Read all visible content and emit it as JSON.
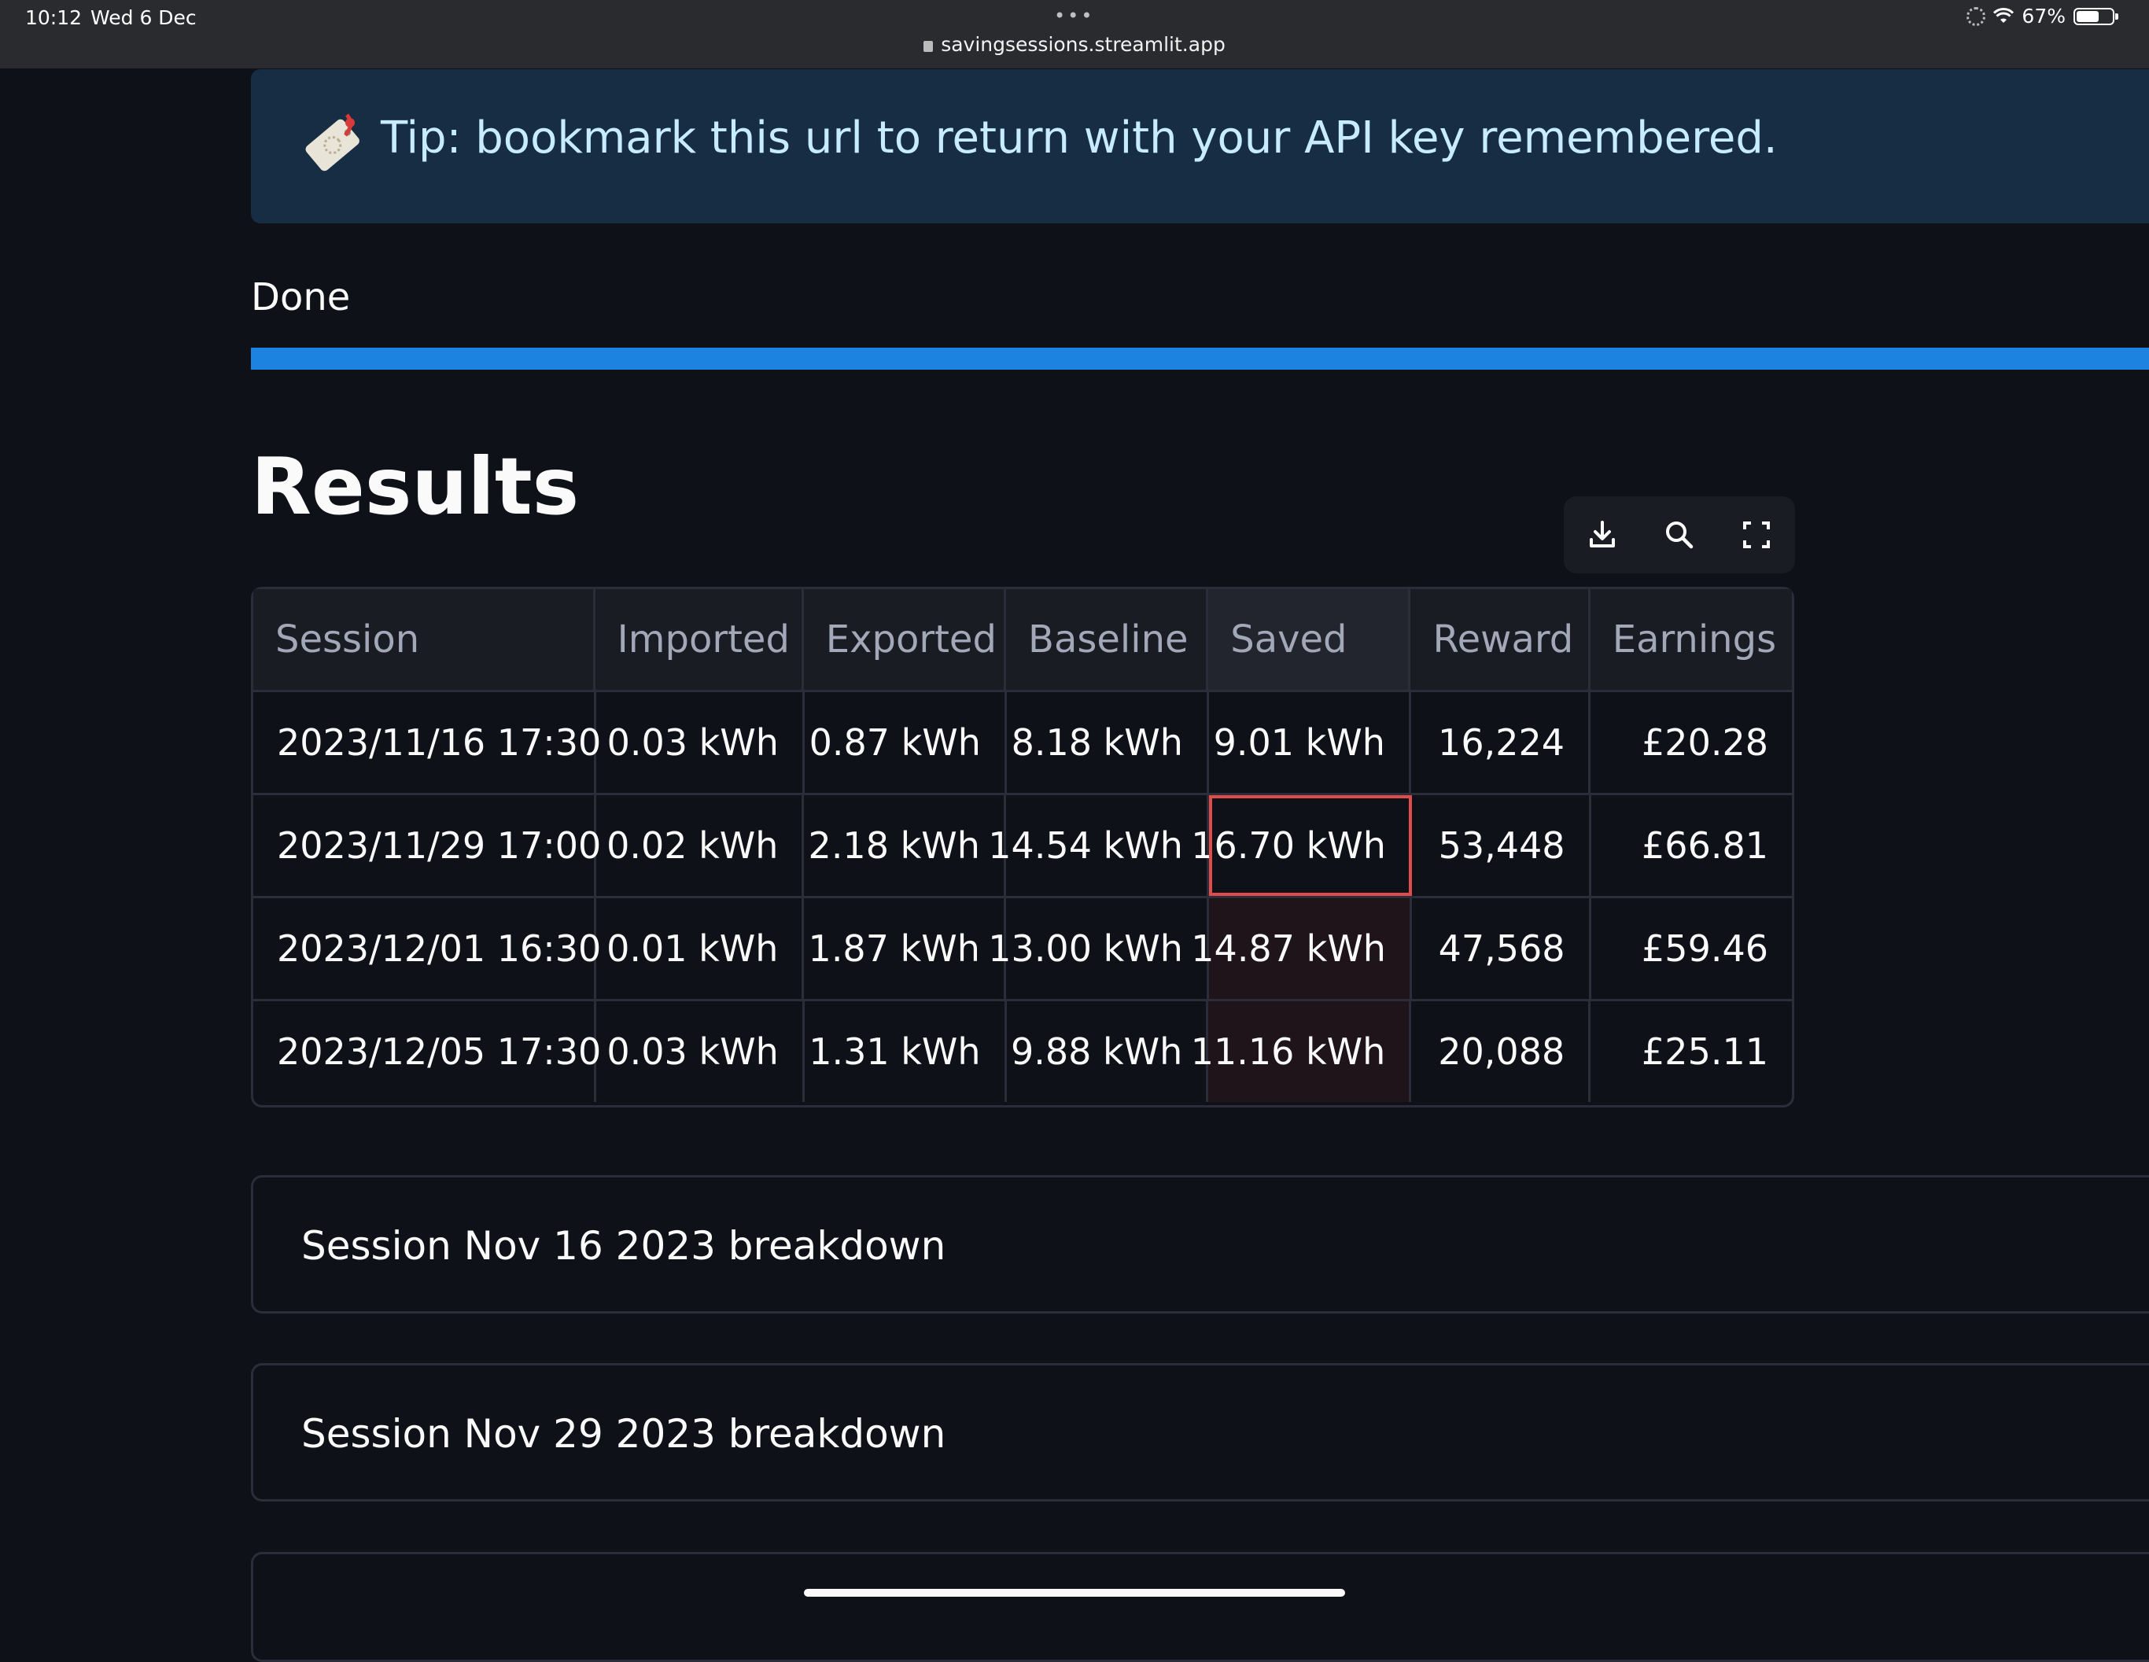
{
  "status_bar": {
    "time": "10:12",
    "date": "Wed 6 Dec",
    "battery": "67%",
    "battery_level": 0.67
  },
  "browser": {
    "url": "savingsessions.streamlit.app",
    "menu_dots": "•••"
  },
  "tip": {
    "icon": "bookmark-tag-icon",
    "text": "Tip: bookmark this url to return with your API key remembered."
  },
  "progress": {
    "label": "Done",
    "value": 1.0,
    "color": "#1c83e1"
  },
  "results": {
    "title": "Results",
    "toolbar": {
      "download_icon": "download-icon",
      "search_icon": "search-icon",
      "fullscreen_icon": "fullscreen-icon"
    },
    "columns": [
      "Session",
      "Imported",
      "Exported",
      "Baseline",
      "Saved",
      "Reward",
      "Earnings"
    ],
    "rows": [
      [
        "2023/11/16 17:30",
        "0.03 kWh",
        "0.87 kWh",
        "8.18 kWh",
        "9.01 kWh",
        "16,224",
        "£20.28"
      ],
      [
        "2023/11/29 17:00",
        "0.02 kWh",
        "2.18 kWh",
        "14.54 kWh",
        "16.70 kWh",
        "53,448",
        "£66.81"
      ],
      [
        "2023/12/01 16:30",
        "0.01 kWh",
        "1.87 kWh",
        "13.00 kWh",
        "14.87 kWh",
        "47,568",
        "£59.46"
      ],
      [
        "2023/12/05 17:30",
        "0.03 kWh",
        "1.31 kWh",
        "9.88 kWh",
        "11.16 kWh",
        "20,088",
        "£25.11"
      ]
    ],
    "focus_color": "#e04c4c"
  },
  "expanders": [
    {
      "label": "Session Nov 16 2023 breakdown"
    },
    {
      "label": "Session Nov 29 2023 breakdown"
    },
    {
      "label": ""
    }
  ]
}
